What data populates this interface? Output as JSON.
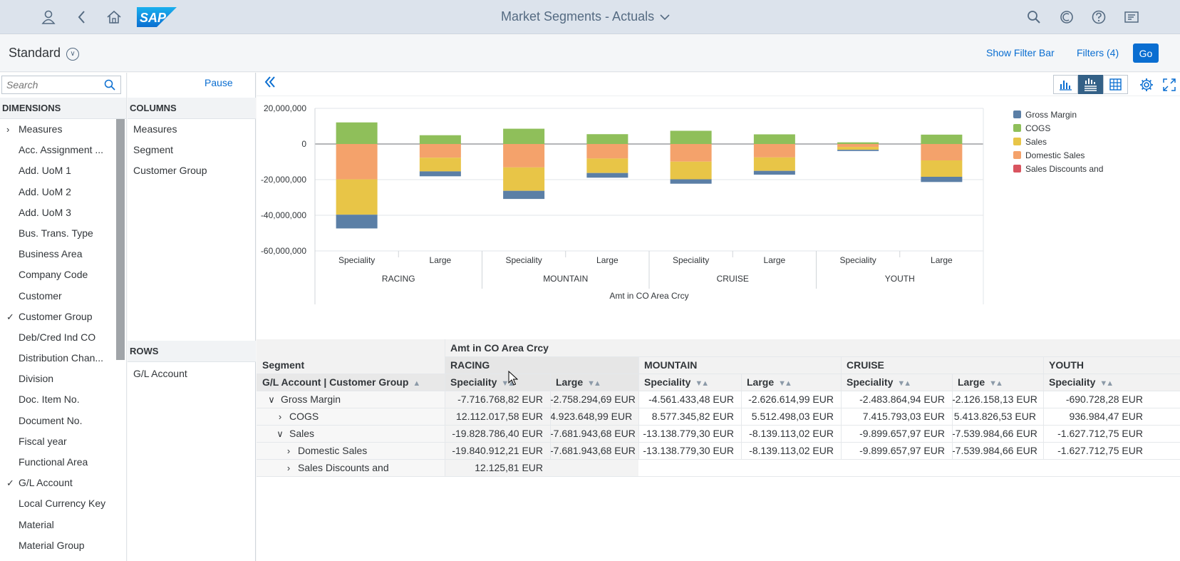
{
  "shell": {
    "title": "Market Segments - Actuals",
    "logo_text": "SAP"
  },
  "header": {
    "variant": "Standard",
    "show_filter_bar": "Show Filter Bar",
    "filters": "Filters (4)",
    "go": "Go"
  },
  "dimensions": {
    "search_placeholder": "Search",
    "title": "DIMENSIONS",
    "items": [
      {
        "label": "Measures",
        "mark": "›"
      },
      {
        "label": "Acc. Assignment ...",
        "mark": ""
      },
      {
        "label": "Add. UoM 1",
        "mark": ""
      },
      {
        "label": "Add. UoM 2",
        "mark": ""
      },
      {
        "label": "Add. UoM 3",
        "mark": ""
      },
      {
        "label": "Bus. Trans. Type",
        "mark": ""
      },
      {
        "label": "Business Area",
        "mark": ""
      },
      {
        "label": "Company Code",
        "mark": ""
      },
      {
        "label": "Customer",
        "mark": ""
      },
      {
        "label": "Customer Group",
        "mark": "✓"
      },
      {
        "label": "Deb/Cred Ind CO",
        "mark": ""
      },
      {
        "label": "Distribution Chan...",
        "mark": ""
      },
      {
        "label": "Division",
        "mark": ""
      },
      {
        "label": "Doc. Item No.",
        "mark": ""
      },
      {
        "label": "Document No.",
        "mark": ""
      },
      {
        "label": "Fiscal year",
        "mark": ""
      },
      {
        "label": "Functional Area",
        "mark": ""
      },
      {
        "label": "G/L Account",
        "mark": "✓"
      },
      {
        "label": "Local Currency Key",
        "mark": ""
      },
      {
        "label": "Material",
        "mark": ""
      },
      {
        "label": "Material Group",
        "mark": ""
      }
    ]
  },
  "layout_panel": {
    "pause": "Pause",
    "columns_title": "COLUMNS",
    "columns": [
      "Measures",
      "Segment",
      "Customer Group"
    ],
    "rows_title": "ROWS",
    "rows": [
      "G/L Account"
    ]
  },
  "chart_data": {
    "type": "bar",
    "stacked": true,
    "categories": [
      "Speciality",
      "Large",
      "Speciality",
      "Large",
      "Speciality",
      "Large",
      "Speciality",
      "Large"
    ],
    "groups": [
      "RACING",
      "MOUNTAIN",
      "CRUISE",
      "YOUTH"
    ],
    "xlabel": "Amt in CO Area Crcy",
    "ylim": [
      -60000000,
      20000000
    ],
    "yticks": [
      "20,000,000",
      "0",
      "-20,000,000",
      "-40,000,000",
      "-60,000,000"
    ],
    "legend_position": "right",
    "series": [
      {
        "name": "Gross Margin",
        "color": "#5b7fa6",
        "values": [
          -7716768.82,
          -2758294.69,
          -4561433.48,
          -2626614.99,
          -2483864.94,
          -2126158.13,
          -690728.28,
          -2930000
        ]
      },
      {
        "name": "COGS",
        "color": "#8fbf5a",
        "values": [
          12112017.58,
          4923648.99,
          8577345.82,
          5512498.03,
          7415793.03,
          5413826.53,
          936984.47,
          5250000
        ]
      },
      {
        "name": "Sales",
        "color": "#e8c547",
        "values": [
          -19828786.4,
          -7681943.68,
          -13138779.3,
          -8139113.02,
          -9899657.97,
          -7539984.66,
          -1627712.75,
          -9200000
        ]
      },
      {
        "name": "Domestic Sales",
        "color": "#f4a26b",
        "values": [
          -19840912.21,
          -7681943.68,
          -13138779.3,
          -8139113.02,
          -9899657.97,
          -7539984.66,
          -1627712.75,
          -9200000
        ]
      },
      {
        "name": "Sales Discounts and",
        "color": "#d9545f",
        "values": [
          12125.81,
          0,
          0,
          0,
          0,
          0,
          0,
          0
        ]
      }
    ]
  },
  "table": {
    "measure_header": "Amt in CO Area Crcy",
    "segment_label": "Segment",
    "row_header": "G/L Account | Customer Group",
    "segments": [
      "RACING",
      "MOUNTAIN",
      "CRUISE",
      "YOUTH"
    ],
    "subcols": [
      "Speciality",
      "Large",
      "Speciality",
      "Large",
      "Speciality",
      "Large",
      "Speciality"
    ],
    "rows": [
      {
        "label": "Gross Margin",
        "expander": "∨",
        "indent": 0,
        "values": [
          "-7.716.768,82 EUR",
          "-2.758.294,69 EUR",
          "-4.561.433,48 EUR",
          "-2.626.614,99 EUR",
          "-2.483.864,94 EUR",
          "-2.126.158,13 EUR",
          "-690.728,28 EUR"
        ]
      },
      {
        "label": "COGS",
        "expander": "›",
        "indent": 1,
        "values": [
          "12.112.017,58 EUR",
          "4.923.648,99 EUR",
          "8.577.345,82 EUR",
          "5.512.498,03 EUR",
          "7.415.793,03 EUR",
          "5.413.826,53 EUR",
          "936.984,47 EUR"
        ]
      },
      {
        "label": "Sales",
        "expander": "∨",
        "indent": 1,
        "values": [
          "-19.828.786,40 EUR",
          "-7.681.943,68 EUR",
          "-13.138.779,30 EUR",
          "-8.139.113,02 EUR",
          "-9.899.657,97 EUR",
          "-7.539.984,66 EUR",
          "-1.627.712,75 EUR"
        ]
      },
      {
        "label": "Domestic Sales",
        "expander": "›",
        "indent": 2,
        "values": [
          "-19.840.912,21 EUR",
          "-7.681.943,68 EUR",
          "-13.138.779,30 EUR",
          "-8.139.113,02 EUR",
          "-9.899.657,97 EUR",
          "-7.539.984,66 EUR",
          "-1.627.712,75 EUR"
        ]
      },
      {
        "label": "Sales Discounts and",
        "expander": "›",
        "indent": 2,
        "values": [
          "12.125,81 EUR",
          "",
          "",
          "",
          "",
          "",
          ""
        ]
      }
    ]
  }
}
